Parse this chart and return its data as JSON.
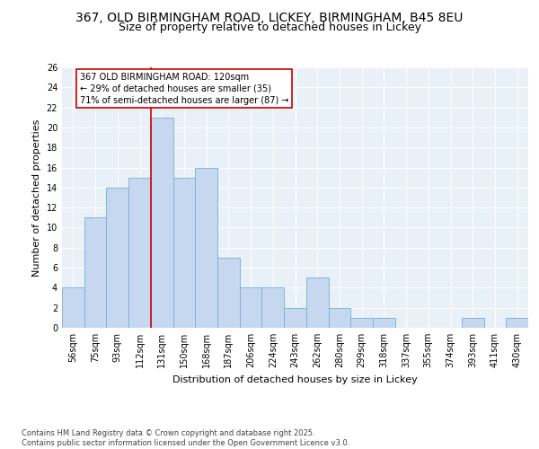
{
  "title1": "367, OLD BIRMINGHAM ROAD, LICKEY, BIRMINGHAM, B45 8EU",
  "title2": "Size of property relative to detached houses in Lickey",
  "xlabel": "Distribution of detached houses by size in Lickey",
  "ylabel": "Number of detached properties",
  "categories": [
    "56sqm",
    "75sqm",
    "93sqm",
    "112sqm",
    "131sqm",
    "150sqm",
    "168sqm",
    "187sqm",
    "206sqm",
    "224sqm",
    "243sqm",
    "262sqm",
    "280sqm",
    "299sqm",
    "318sqm",
    "337sqm",
    "355sqm",
    "374sqm",
    "393sqm",
    "411sqm",
    "430sqm"
  ],
  "values": [
    4,
    11,
    14,
    15,
    21,
    15,
    16,
    7,
    4,
    4,
    2,
    5,
    2,
    1,
    1,
    0,
    0,
    0,
    1,
    0,
    1
  ],
  "bar_color": "#c5d8f0",
  "bar_edge_color": "#7aadd4",
  "bg_color": "#e8f0f8",
  "grid_color": "#ffffff",
  "vline_x": 3.5,
  "vline_color": "#cc0000",
  "annotation_text": "367 OLD BIRMINGHAM ROAD: 120sqm\n← 29% of detached houses are smaller (35)\n71% of semi-detached houses are larger (87) →",
  "annotation_box_color": "#cc0000",
  "annotation_bg": "#ffffff",
  "ylim": [
    0,
    26
  ],
  "yticks": [
    0,
    2,
    4,
    6,
    8,
    10,
    12,
    14,
    16,
    18,
    20,
    22,
    24,
    26
  ],
  "footer": "Contains HM Land Registry data © Crown copyright and database right 2025.\nContains public sector information licensed under the Open Government Licence v3.0.",
  "title_fontsize": 10,
  "subtitle_fontsize": 9,
  "tick_fontsize": 7,
  "label_fontsize": 8,
  "annot_fontsize": 7
}
